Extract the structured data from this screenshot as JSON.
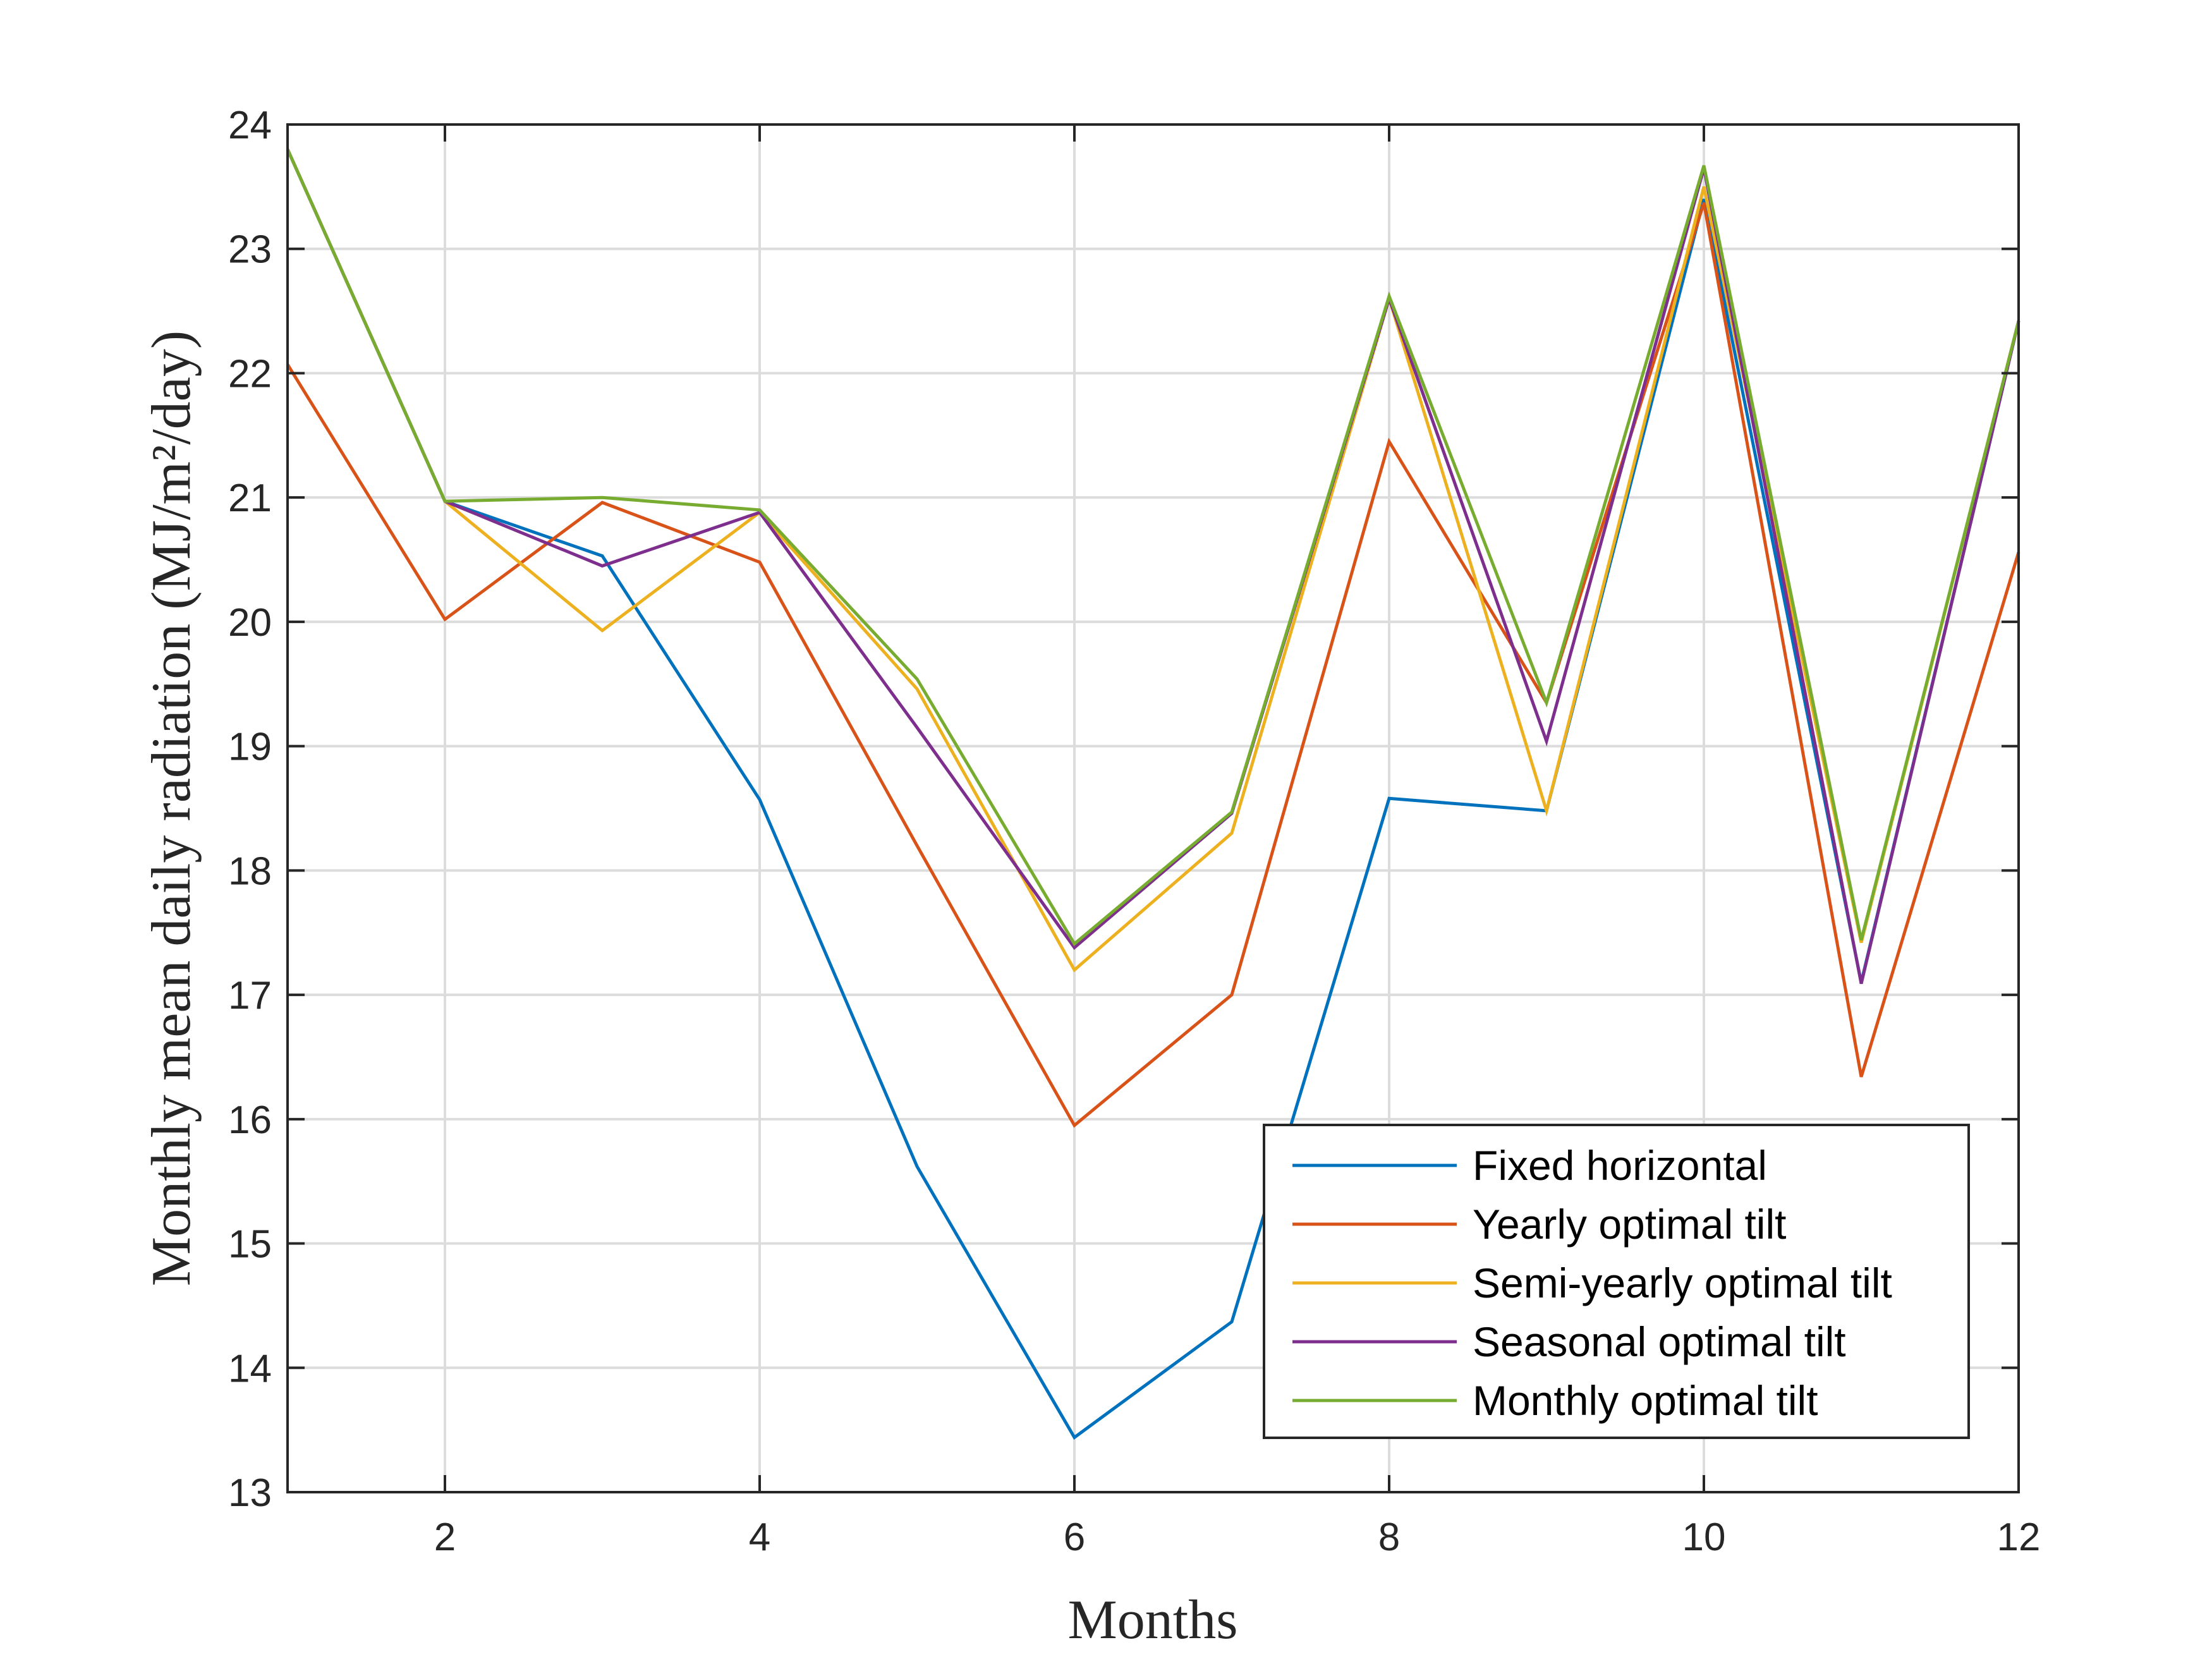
{
  "chart_data": {
    "type": "line",
    "title": "",
    "xlabel": "Months",
    "ylabel": "Monthly mean daily radiation (MJ/m²/day)",
    "xlim": [
      1,
      12
    ],
    "ylim": [
      13,
      24
    ],
    "x": [
      1,
      2,
      3,
      4,
      5,
      6,
      7,
      8,
      9,
      10,
      11,
      12
    ],
    "xticks": [
      2,
      4,
      6,
      8,
      10,
      12
    ],
    "xtick_labels": [
      "2",
      "4",
      "6",
      "8",
      "10",
      "12"
    ],
    "yticks": [
      13,
      14,
      15,
      16,
      17,
      18,
      19,
      20,
      21,
      22,
      23,
      24
    ],
    "ytick_labels": [
      "13",
      "14",
      "15",
      "16",
      "17",
      "18",
      "19",
      "20",
      "21",
      "22",
      "23",
      "24"
    ],
    "grid": true,
    "legend_position": "bottom-right",
    "series": [
      {
        "name": "Fixed horizontal",
        "color": "#0072BD",
        "values": [
          23.8,
          20.97,
          20.53,
          18.57,
          15.62,
          13.44,
          14.37,
          18.58,
          18.48,
          23.4,
          17.1,
          22.42
        ]
      },
      {
        "name": "Yearly optimal tilt",
        "color": "#D95319",
        "values": [
          22.07,
          20.02,
          20.96,
          20.48,
          18.2,
          15.95,
          17.0,
          21.45,
          19.35,
          23.37,
          16.34,
          20.56
        ]
      },
      {
        "name": "Semi-yearly optimal tilt",
        "color": "#EDB120",
        "values": [
          23.8,
          20.97,
          19.93,
          20.88,
          19.46,
          17.2,
          18.3,
          22.6,
          18.48,
          23.5,
          17.42,
          22.42
        ]
      },
      {
        "name": "Seasonal optimal tilt",
        "color": "#7E2F8E",
        "values": [
          23.8,
          20.97,
          20.45,
          20.88,
          19.15,
          17.38,
          18.46,
          22.6,
          19.04,
          23.65,
          17.09,
          22.42
        ]
      },
      {
        "name": "Monthly optimal tilt",
        "color": "#77AC30",
        "values": [
          23.8,
          20.97,
          21.0,
          20.9,
          19.54,
          17.41,
          18.47,
          22.62,
          19.35,
          23.67,
          17.44,
          22.42
        ]
      }
    ]
  }
}
